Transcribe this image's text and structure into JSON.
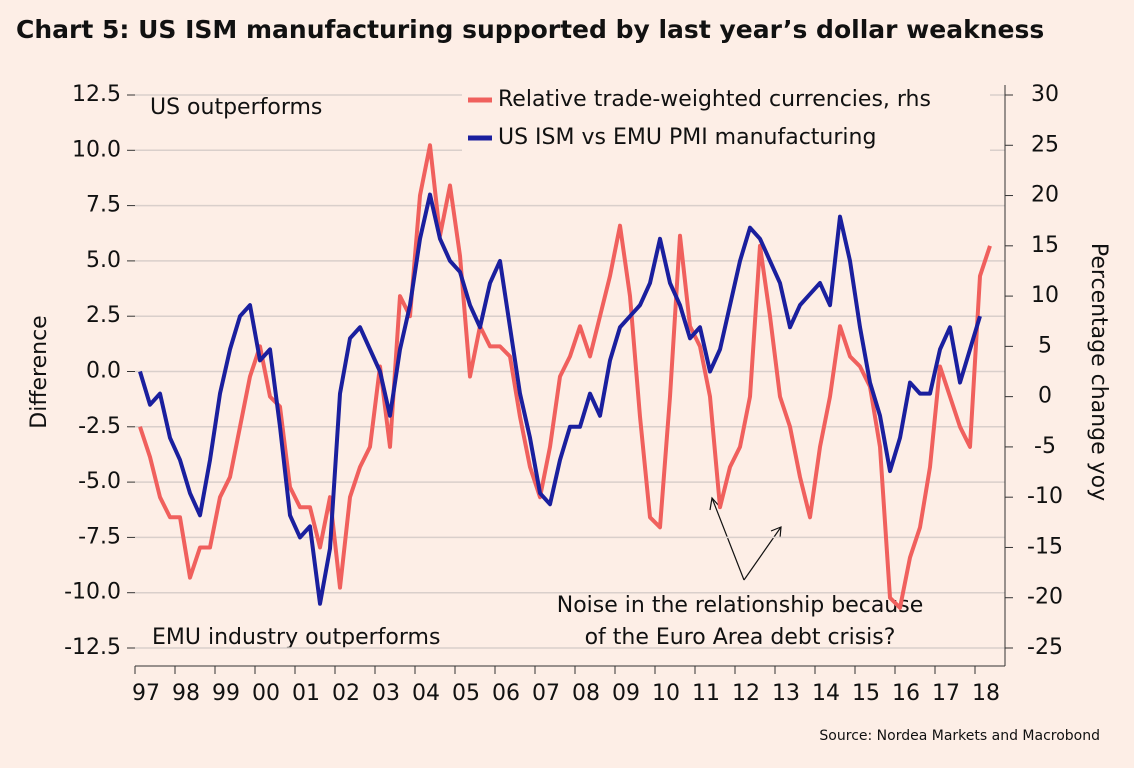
{
  "chart_data": {
    "type": "line",
    "title": "Chart 5: US ISM manufacturing supported by last year’s dollar weakness",
    "y_label": "Difference",
    "y2_label": "Percentage change yoy",
    "source": "Source: Nordea Markets and Macrobond",
    "annotations": [
      "US outperforms",
      "EMU industry outperforms",
      "Noise in the relationship because",
      "of the Euro Area debt crisis?"
    ],
    "categories": [
      "97",
      null,
      null,
      null,
      "98",
      null,
      null,
      null,
      "99",
      null,
      null,
      null,
      "00",
      null,
      null,
      null,
      "01",
      null,
      null,
      null,
      "02",
      null,
      null,
      null,
      "03",
      null,
      null,
      null,
      "04",
      null,
      null,
      null,
      "05",
      null,
      null,
      null,
      "06",
      null,
      null,
      null,
      "07",
      null,
      null,
      null,
      "08",
      null,
      null,
      null,
      "09",
      null,
      null,
      null,
      "10",
      null,
      null,
      null,
      "11",
      null,
      null,
      null,
      "12",
      null,
      null,
      null,
      "13",
      null,
      null,
      null,
      "14",
      null,
      null,
      null,
      "15",
      null,
      null,
      null,
      "16",
      null,
      null,
      null,
      "17",
      null,
      null,
      null,
      "18",
      null
    ],
    "series": [
      {
        "name": "Relative trade-weighted currencies, rhs",
        "color": "#f0605d",
        "axis": "y2",
        "values": [
          -3,
          -6,
          -10,
          -12,
          -12,
          -18,
          -15,
          -15,
          -10,
          -8,
          -3,
          2,
          5,
          0,
          -1,
          -9,
          -11,
          -11,
          -15,
          -10,
          -19,
          -10,
          -7,
          -5,
          3,
          -5,
          10,
          8,
          20,
          25,
          16,
          21,
          14,
          2,
          7,
          5,
          5,
          4,
          -2,
          -7,
          -10,
          -5,
          2,
          4,
          7,
          4,
          8,
          12,
          17,
          10,
          -2,
          -12,
          -13,
          0,
          16,
          7,
          5,
          0,
          -11,
          -7,
          -5,
          0,
          15,
          8,
          0,
          -3,
          -8,
          -12,
          -5,
          0,
          7,
          4,
          3,
          1,
          -5,
          -20,
          -21,
          -16,
          -13,
          -7,
          3,
          0,
          -3,
          -5,
          12,
          15
        ]
      },
      {
        "name": "US ISM vs EMU PMI manufacturing",
        "color": "#1a1f9e",
        "values": [
          0,
          -1.5,
          -1,
          -3,
          -4,
          -5.5,
          -6.5,
          -4,
          -1,
          1,
          2.5,
          3,
          0.5,
          1,
          -2.5,
          -6.5,
          -7.5,
          -7,
          -10.5,
          -8,
          -1,
          1.5,
          2,
          1,
          0,
          -2,
          1,
          3,
          6,
          8,
          6,
          5,
          4.5,
          3,
          2,
          4,
          5,
          2,
          -1,
          -3,
          -5.5,
          -6,
          -4,
          -2.5,
          -2.5,
          -1,
          -2,
          0.5,
          2,
          2.5,
          3,
          4,
          6,
          4,
          3,
          1.5,
          2,
          0,
          1,
          3,
          5,
          6.5,
          6,
          5,
          4,
          2,
          3,
          3.5,
          4,
          3,
          7,
          5,
          2,
          -0.5,
          -2,
          -4.5,
          -3,
          -0.5,
          -1,
          -1,
          1,
          2,
          -0.5,
          1,
          2.5,
          null
        ]
      }
    ],
    "ylim": [
      -12.5,
      12.5
    ],
    "yticks": [
      {
        "value": 12.5,
        "label": "12.5"
      },
      {
        "value": 10,
        "label": "10.0"
      },
      7.5,
      {
        "value": 5,
        "label": "5.0"
      },
      2.5,
      {
        "value": 0,
        "label": "0.0"
      },
      -2.5,
      {
        "value": -5,
        "label": "-5.0"
      },
      -7.5,
      {
        "value": -10,
        "label": "-10.0"
      },
      -12.5
    ],
    "y2lim": [
      -25,
      30
    ],
    "y2ticks": [
      30,
      25,
      20,
      15,
      10,
      5,
      0,
      -5,
      -10,
      -15,
      -20,
      -25
    ],
    "grid": true,
    "legend": "top-right"
  }
}
